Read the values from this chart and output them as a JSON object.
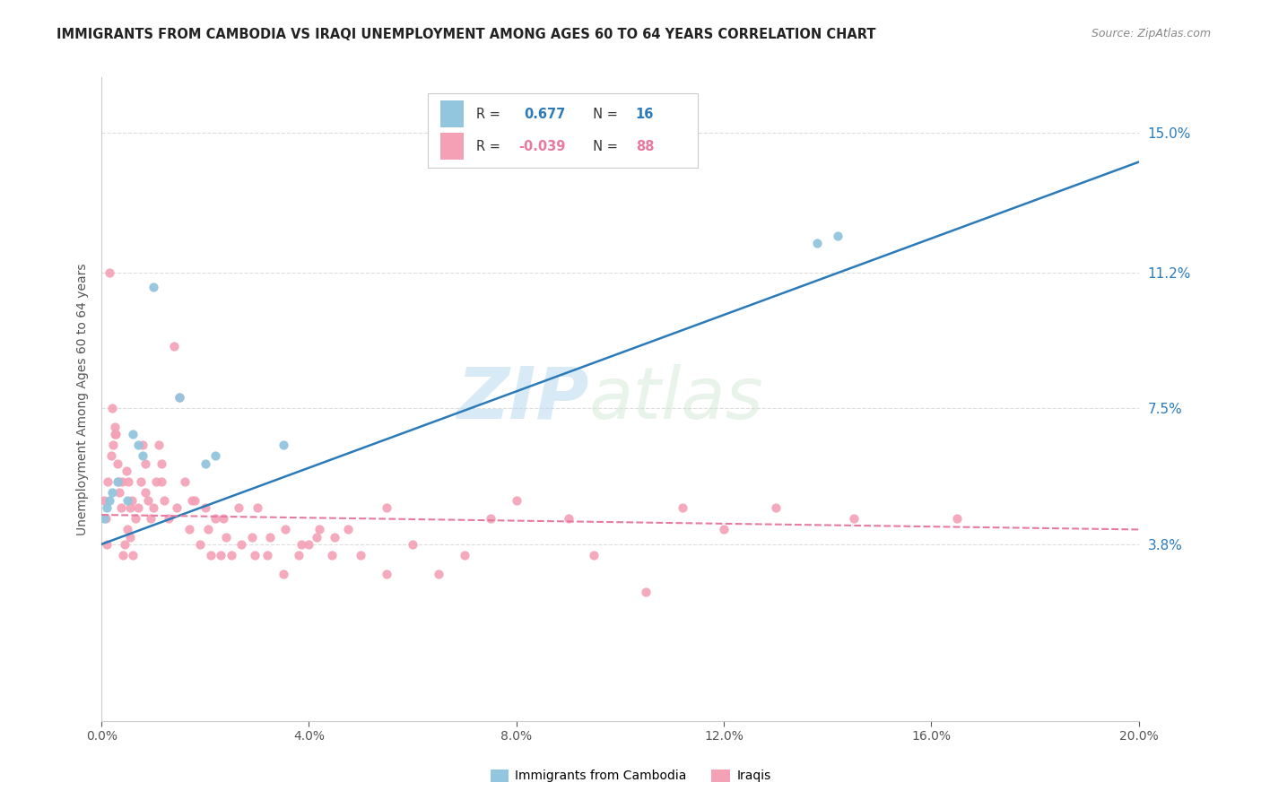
{
  "title": "IMMIGRANTS FROM CAMBODIA VS IRAQI UNEMPLOYMENT AMONG AGES 60 TO 64 YEARS CORRELATION CHART",
  "source": "Source: ZipAtlas.com",
  "ylabel": "Unemployment Among Ages 60 to 64 years",
  "ytick_labels": [
    "3.8%",
    "7.5%",
    "11.2%",
    "15.0%"
  ],
  "ytick_values": [
    3.8,
    7.5,
    11.2,
    15.0
  ],
  "xlim": [
    0.0,
    20.0
  ],
  "ylim": [
    -1.0,
    16.5
  ],
  "r_cambodia": 0.677,
  "n_cambodia": 16,
  "r_iraqi": -0.039,
  "n_iraqi": 88,
  "color_cambodia": "#92c5de",
  "color_iraqi": "#f4a0b5",
  "line_color_cambodia": "#2b7bba",
  "line_color_iraqi": "#e87a9f",
  "watermark_zip": "ZIP",
  "watermark_atlas": "atlas",
  "legend_label_cambodia": "Immigrants from Cambodia",
  "legend_label_iraqi": "Iraqis",
  "xtick_positions": [
    0.0,
    4.0,
    8.0,
    12.0,
    16.0,
    20.0
  ],
  "xtick_labels": [
    "0.0%",
    "4.0%",
    "8.0%",
    "12.0%",
    "16.0%",
    "20.0%"
  ],
  "cam_line_x": [
    0.0,
    20.0
  ],
  "cam_line_y": [
    3.8,
    14.2
  ],
  "irq_line_x": [
    0.0,
    20.0
  ],
  "irq_line_y": [
    4.6,
    4.2
  ],
  "cambodia_x": [
    0.05,
    0.1,
    0.15,
    0.2,
    0.3,
    0.5,
    0.6,
    0.7,
    0.8,
    1.0,
    1.5,
    2.0,
    2.2,
    3.5,
    13.8,
    14.2
  ],
  "cambodia_y": [
    4.5,
    4.8,
    5.0,
    5.2,
    5.5,
    5.0,
    6.8,
    6.5,
    6.2,
    10.8,
    7.8,
    6.0,
    6.2,
    6.5,
    12.0,
    12.2
  ],
  "iraqi_x": [
    0.05,
    0.08,
    0.1,
    0.12,
    0.15,
    0.18,
    0.2,
    0.22,
    0.25,
    0.28,
    0.3,
    0.32,
    0.35,
    0.38,
    0.4,
    0.42,
    0.45,
    0.48,
    0.5,
    0.52,
    0.55,
    0.58,
    0.6,
    0.65,
    0.7,
    0.75,
    0.8,
    0.85,
    0.9,
    0.95,
    1.0,
    1.05,
    1.1,
    1.15,
    1.2,
    1.3,
    1.4,
    1.5,
    1.6,
    1.7,
    1.8,
    1.9,
    2.0,
    2.1,
    2.2,
    2.3,
    2.4,
    2.5,
    2.7,
    2.9,
    3.0,
    3.2,
    3.5,
    3.8,
    4.0,
    4.2,
    4.5,
    5.0,
    5.5,
    6.0,
    7.0,
    7.5,
    8.0,
    9.0,
    9.5,
    10.5,
    11.2,
    12.0,
    13.0,
    14.5,
    16.5,
    0.25,
    0.55,
    0.85,
    1.15,
    1.45,
    1.75,
    2.05,
    2.35,
    2.65,
    2.95,
    3.25,
    3.55,
    3.85,
    4.15,
    4.45,
    4.75,
    5.5,
    6.5
  ],
  "iraqi_y": [
    5.0,
    4.5,
    3.8,
    5.5,
    11.2,
    6.2,
    7.5,
    6.5,
    7.0,
    6.8,
    6.0,
    5.5,
    5.2,
    4.8,
    5.5,
    3.5,
    3.8,
    5.8,
    4.2,
    5.5,
    4.0,
    5.0,
    3.5,
    4.5,
    4.8,
    5.5,
    6.5,
    6.0,
    5.0,
    4.5,
    4.8,
    5.5,
    6.5,
    6.0,
    5.0,
    4.5,
    9.2,
    7.8,
    5.5,
    4.2,
    5.0,
    3.8,
    4.8,
    3.5,
    4.5,
    3.5,
    4.0,
    3.5,
    3.8,
    4.0,
    4.8,
    3.5,
    3.0,
    3.5,
    3.8,
    4.2,
    4.0,
    3.5,
    3.0,
    3.8,
    3.5,
    4.5,
    5.0,
    4.5,
    3.5,
    2.5,
    4.8,
    4.2,
    4.8,
    4.5,
    4.5,
    6.8,
    4.8,
    5.2,
    5.5,
    4.8,
    5.0,
    4.2,
    4.5,
    4.8,
    3.5,
    4.0,
    4.2,
    3.8,
    4.0,
    3.5,
    4.2,
    4.8,
    3.0
  ]
}
